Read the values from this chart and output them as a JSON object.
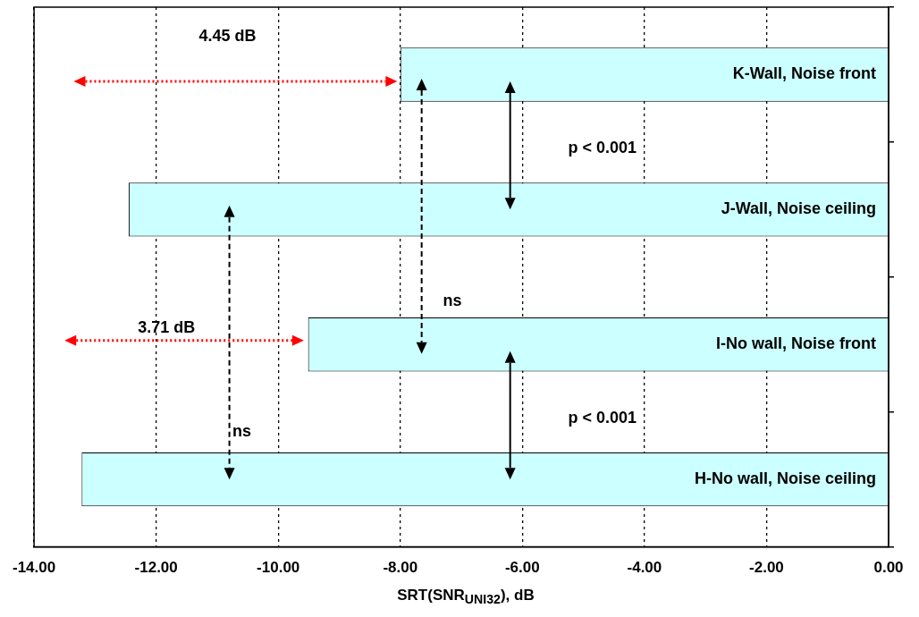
{
  "chart_data": {
    "type": "bar",
    "orientation": "horizontal",
    "xlabel": "SRT(SNR$_{UNI32}$), dB",
    "categories": [
      "K-Wall, Noise front",
      "J-Wall, Noise ceiling",
      "I-No wall, Noise front",
      "H-No wall, Noise ceiling"
    ],
    "values": [
      -8.0,
      -12.45,
      -9.51,
      -13.22
    ],
    "color": "#ccffff",
    "xlim": [
      -14,
      0
    ],
    "xticks": [
      {
        "value": -14,
        "label": "-14.00"
      },
      {
        "value": -12,
        "label": "-12.00"
      },
      {
        "value": -10,
        "label": "-10.00"
      },
      {
        "value": -8,
        "label": "-8.00"
      },
      {
        "value": -6,
        "label": "-6.00"
      },
      {
        "value": -4,
        "label": "-4.00"
      },
      {
        "value": -2,
        "label": "-2.00"
      },
      {
        "value": 0,
        "label": "0.00"
      }
    ],
    "grid": "x",
    "legend": false,
    "tick_labels": "x",
    "annotations": [
      "4.45 dB",
      "3.71 dB",
      "p < 0.001",
      "p < 0.001",
      "ns",
      "ns"
    ]
  }
}
